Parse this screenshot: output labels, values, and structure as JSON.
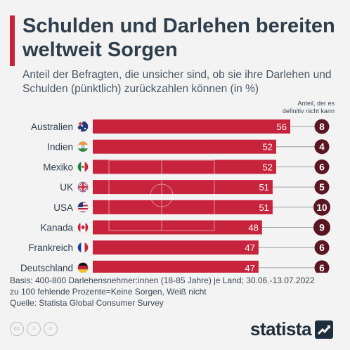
{
  "header": {
    "title": "Schulden und Darlehen bereiten weltweit Sorgen",
    "subtitle": "Anteil der Befragten, die unsicher sind, ob sie ihre Darlehen und Schulden (pünktlich) zurückzahlen können (in %)"
  },
  "colors": {
    "accent": "#c8233c",
    "bar": "#c8233c",
    "circle": "#5a1523",
    "text_dark": "#2f3e4c"
  },
  "chart_data": {
    "type": "bar",
    "orientation": "horizontal",
    "categories": [
      "Australien",
      "Indien",
      "Mexiko",
      "UK",
      "USA",
      "Kanada",
      "Frankreich",
      "Deutschland"
    ],
    "flags": [
      "flag-australia-icon",
      "flag-india-icon",
      "flag-mexico-icon",
      "flag-uk-icon",
      "flag-usa-icon",
      "flag-canada-icon",
      "flag-france-icon",
      "flag-germany-icon"
    ],
    "series": [
      {
        "name": "",
        "values": [
          56,
          52,
          52,
          51,
          51,
          48,
          47,
          47
        ]
      },
      {
        "name": "Anteil, der es definitiv nicht kann",
        "values": [
          8,
          4,
          6,
          5,
          10,
          9,
          6,
          6
        ]
      }
    ],
    "legend_label_line1": "Anteil, der es",
    "legend_label_line2": "definitiv nicht kann",
    "xlim": [
      0,
      56
    ],
    "grid": false
  },
  "footer": {
    "note_line1": "Basis: 400-800 Darlehensnehmer:innen (18-85 Jahre) je Land; 30.06.-13.07.2022",
    "note_line2": "zu 100 fehlende Prozente=Keine Sorgen, Weiß nicht",
    "source": "Quelle: Statista Global Consumer Survey",
    "cc_icons": [
      "cc",
      "i",
      "="
    ]
  },
  "brand": {
    "logo_text": "statista"
  }
}
